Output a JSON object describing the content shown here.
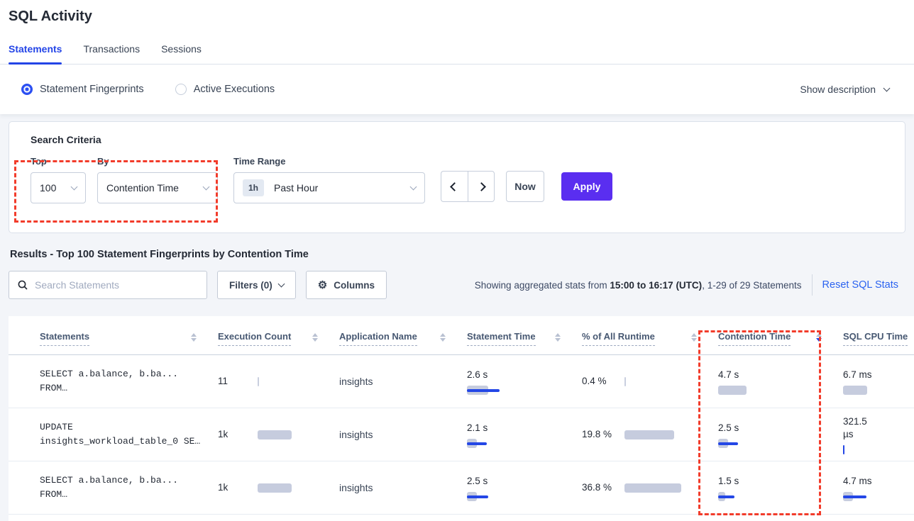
{
  "header": {
    "title": "SQL Activity"
  },
  "tabs": [
    {
      "label": "Statements",
      "active": true
    },
    {
      "label": "Transactions",
      "active": false
    },
    {
      "label": "Sessions",
      "active": false
    }
  ],
  "view_toggle": {
    "options": [
      {
        "label": "Statement Fingerprints",
        "selected": true
      },
      {
        "label": "Active Executions",
        "selected": false
      }
    ],
    "show_description_label": "Show description"
  },
  "search_criteria": {
    "title": "Search Criteria",
    "top_label": "Top",
    "top_value": "100",
    "by_label": "By",
    "by_value": "Contention Time",
    "time_range_label": "Time Range",
    "time_badge": "1h",
    "time_value": "Past Hour",
    "now_label": "Now",
    "apply_label": "Apply"
  },
  "results_bar": {
    "heading": "Results - Top 100 Statement Fingerprints by Contention Time",
    "search_placeholder": "Search Statements",
    "filters_label": "Filters (0)",
    "columns_label": "Columns",
    "stats_prefix": "Showing aggregated stats from ",
    "stats_bold": "15:00 to 16:17 (UTC)",
    "stats_suffix": ", 1-29 of 29 Statements",
    "reset_label": "Reset SQL Stats"
  },
  "table": {
    "columns": [
      {
        "label": "Statements",
        "sort": "both"
      },
      {
        "label": "Execution Count",
        "sort": "both"
      },
      {
        "label": "Application Name",
        "sort": "both"
      },
      {
        "label": "Statement Time",
        "sort": "both"
      },
      {
        "label": "% of All Runtime",
        "sort": "both"
      },
      {
        "label": "Contention Time",
        "sort": "desc"
      },
      {
        "label": "SQL CPU Time",
        "sort": "none"
      }
    ],
    "rows": [
      {
        "statement": [
          "SELECT a.balance, b.ba...",
          "FROM…"
        ],
        "execution": {
          "value": "11",
          "bar": 0,
          "line": 0,
          "tick": "gray"
        },
        "application": "insights",
        "statement_time": {
          "value": "2.6 s",
          "bar": 30,
          "line": 46
        },
        "runtime_pct": {
          "value": "0.4 %",
          "bar": 0,
          "tick": "gray"
        },
        "contention_time": {
          "value": "4.7 s",
          "bar": 40,
          "line": 0
        },
        "sql_cpu_time": {
          "value": "6.7 ms",
          "bar": 34,
          "line": 0
        }
      },
      {
        "statement": [
          "UPDATE",
          "insights_workload_table_0 SE…"
        ],
        "execution": {
          "value": "1k",
          "bar": 48,
          "line": 0
        },
        "application": "insights",
        "statement_time": {
          "value": "2.1 s",
          "bar": 14,
          "line": 28
        },
        "runtime_pct": {
          "value": "19.8 %",
          "bar": 70
        },
        "contention_time": {
          "value": "2.5 s",
          "bar": 14,
          "line": 28
        },
        "sql_cpu_time": {
          "value": "321.5 µs",
          "bar": 0,
          "line": 0,
          "tick": "blue"
        }
      },
      {
        "statement": [
          "SELECT a.balance, b.ba...",
          "FROM…"
        ],
        "execution": {
          "value": "1k",
          "bar": 48,
          "line": 0
        },
        "application": "insights",
        "statement_time": {
          "value": "2.5 s",
          "bar": 14,
          "line": 30
        },
        "runtime_pct": {
          "value": "36.8 %",
          "bar": 80
        },
        "contention_time": {
          "value": "1.5 s",
          "bar": 10,
          "line": 23
        },
        "sql_cpu_time": {
          "value": "4.7 ms",
          "bar": 14,
          "line": 33
        }
      }
    ]
  },
  "annotations": {
    "highlight_color": "#f23c2b",
    "accent_blue": "#2447e6",
    "apply_purple": "#5a2ef0",
    "bar_gray": "#c6ccde"
  }
}
